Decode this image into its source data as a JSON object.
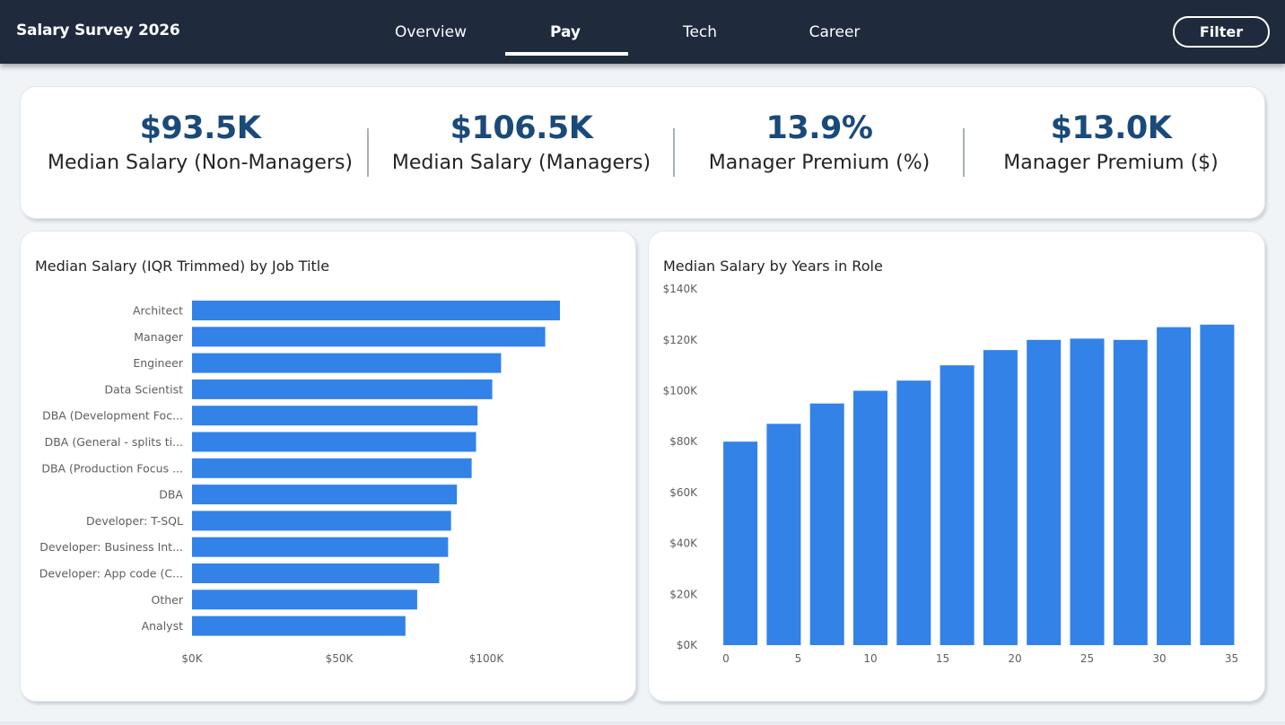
{
  "app": {
    "title": "Salary Survey 2026"
  },
  "tabs": [
    {
      "label": "Overview",
      "active": false
    },
    {
      "label": "Pay",
      "active": true
    },
    {
      "label": "Tech",
      "active": false
    },
    {
      "label": "Career",
      "active": false
    }
  ],
  "filter": {
    "label": "Filter"
  },
  "kpis": [
    {
      "value": "$93.5K",
      "label": "Median Salary (Non-Managers)"
    },
    {
      "value": "$106.5K",
      "label": "Median Salary (Managers)"
    },
    {
      "value": "13.9%",
      "label": "Manager Premium (%)"
    },
    {
      "value": "$13.0K",
      "label": "Manager Premium ($)"
    }
  ],
  "colors": {
    "header_bg": "#1f2b3c",
    "bar": "#3282e8",
    "kpi_value": "#1a4a7a",
    "page_bg": "#f1f4f7"
  },
  "chart_data": [
    {
      "type": "bar",
      "orientation": "horizontal",
      "title": "Median Salary (IQR Trimmed) by Job Title",
      "categories": [
        "Architect",
        "Manager",
        "Engineer",
        "Data Scientist",
        "DBA (Development Foc...",
        "DBA (General - splits ti...",
        "DBA (Production Focus ...",
        "DBA",
        "Developer: T-SQL",
        "Developer: Business Int...",
        "Developer: App code (C...",
        "Other",
        "Analyst"
      ],
      "values": [
        125000,
        120000,
        105000,
        102000,
        97000,
        96500,
        95000,
        90000,
        88000,
        87000,
        84000,
        76500,
        72500
      ],
      "x_ticks": [
        "$0K",
        "$50K",
        "$100K"
      ],
      "xlim": [
        0,
        140000
      ],
      "grid": false,
      "color": "#3282e8"
    },
    {
      "type": "bar",
      "title": "Median Salary by Years in Role",
      "x": [
        1,
        4,
        7,
        10,
        13,
        16,
        19,
        22,
        25,
        28,
        31,
        34
      ],
      "values": [
        80000,
        87000,
        95000,
        100000,
        104000,
        110000,
        116000,
        120000,
        120500,
        120000,
        125000,
        126000
      ],
      "x_ticks": [
        "0",
        "5",
        "10",
        "15",
        "20",
        "25",
        "30",
        "35"
      ],
      "y_ticks": [
        "$0K",
        "$20K",
        "$40K",
        "$60K",
        "$80K",
        "$100K",
        "$120K",
        "$140K"
      ],
      "xlim": [
        0,
        35
      ],
      "ylim": [
        0,
        140000
      ],
      "grid": false,
      "color": "#3282e8"
    }
  ]
}
